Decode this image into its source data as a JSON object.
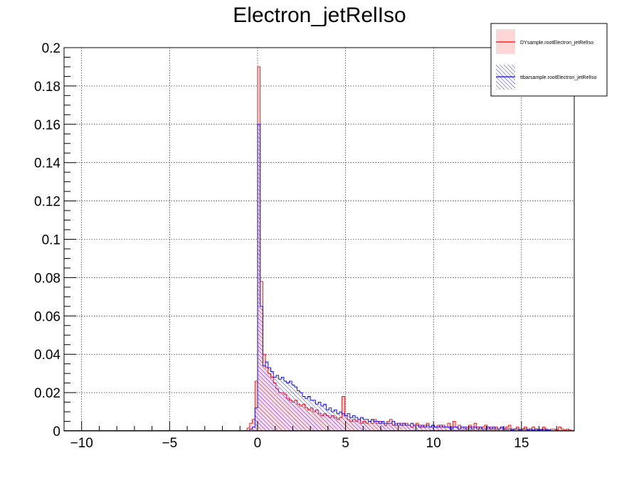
{
  "chart_data": {
    "type": "histogram",
    "title": "Electron_jetRelIso",
    "xlabel": "",
    "ylabel": "",
    "xlim": [
      -11,
      18
    ],
    "ylim": [
      0,
      0.2
    ],
    "x_ticks": [
      -10,
      -5,
      0,
      5,
      10,
      15
    ],
    "x_tick_labels": [
      "−10",
      "−5",
      "0",
      "5",
      "10",
      "15"
    ],
    "y_ticks": [
      0,
      0.02,
      0.04,
      0.06,
      0.08,
      0.1,
      0.12,
      0.14,
      0.16,
      0.18,
      0.2
    ],
    "y_tick_labels": [
      "0",
      "0.02",
      "0.04",
      "0.06",
      "0.08",
      "0.1",
      "0.12",
      "0.14",
      "0.16",
      "0.18",
      "0.2"
    ],
    "grid": true,
    "legend_position": "top-right",
    "bin_width": 0.15,
    "series": [
      {
        "name": "DYsample.rootElectron_jetRelIso",
        "color": "#ff0000",
        "fill": "#ffd6d6",
        "style": "solid-fill",
        "bins": [
          [
            -0.6,
            0.0015
          ],
          [
            -0.45,
            0.004
          ],
          [
            -0.3,
            0.006
          ],
          [
            -0.15,
            0.026
          ],
          [
            0.0,
            0.19
          ],
          [
            0.15,
            0.078
          ],
          [
            0.3,
            0.04
          ],
          [
            0.45,
            0.033
          ],
          [
            0.6,
            0.03
          ],
          [
            0.75,
            0.028
          ],
          [
            0.9,
            0.025
          ],
          [
            1.05,
            0.022
          ],
          [
            1.2,
            0.02
          ],
          [
            1.35,
            0.02
          ],
          [
            1.5,
            0.019
          ],
          [
            1.65,
            0.017
          ],
          [
            1.8,
            0.016
          ],
          [
            1.95,
            0.015
          ],
          [
            2.1,
            0.016
          ],
          [
            2.25,
            0.014
          ],
          [
            2.4,
            0.013
          ],
          [
            2.55,
            0.014
          ],
          [
            2.7,
            0.012
          ],
          [
            2.85,
            0.011
          ],
          [
            3.0,
            0.012
          ],
          [
            3.15,
            0.01
          ],
          [
            3.3,
            0.011
          ],
          [
            3.45,
            0.009
          ],
          [
            3.6,
            0.008
          ],
          [
            3.75,
            0.009
          ],
          [
            3.9,
            0.008
          ],
          [
            4.05,
            0.007
          ],
          [
            4.2,
            0.008
          ],
          [
            4.35,
            0.007
          ],
          [
            4.5,
            0.006
          ],
          [
            4.65,
            0.007
          ],
          [
            4.8,
            0.018
          ],
          [
            4.95,
            0.008
          ],
          [
            5.1,
            0.006
          ],
          [
            5.25,
            0.005
          ],
          [
            5.4,
            0.006
          ],
          [
            5.55,
            0.005
          ],
          [
            5.7,
            0.006
          ],
          [
            5.85,
            0.004
          ],
          [
            6.0,
            0.005
          ],
          [
            6.15,
            0.004
          ],
          [
            6.3,
            0.005
          ],
          [
            6.45,
            0.004
          ],
          [
            6.6,
            0.006
          ],
          [
            6.75,
            0.004
          ],
          [
            6.9,
            0.005
          ],
          [
            7.05,
            0.004
          ],
          [
            7.2,
            0.003
          ],
          [
            7.35,
            0.005
          ],
          [
            7.5,
            0.006
          ],
          [
            7.65,
            0.003
          ],
          [
            7.8,
            0.004
          ],
          [
            7.95,
            0.003
          ],
          [
            8.1,
            0.004
          ],
          [
            8.25,
            0.003
          ],
          [
            8.4,
            0.004
          ],
          [
            8.55,
            0.003
          ],
          [
            8.7,
            0.002
          ],
          [
            8.85,
            0.003
          ],
          [
            9.0,
            0.004
          ],
          [
            9.15,
            0.003
          ],
          [
            9.3,
            0.002
          ],
          [
            9.45,
            0.003
          ],
          [
            9.6,
            0.004
          ],
          [
            9.75,
            0.002
          ],
          [
            9.9,
            0.003
          ],
          [
            10.05,
            0.002
          ],
          [
            10.2,
            0.003
          ],
          [
            10.35,
            0.002
          ],
          [
            10.5,
            0.003
          ],
          [
            10.65,
            0.002
          ],
          [
            10.8,
            0.004
          ],
          [
            10.95,
            0.002
          ],
          [
            11.1,
            0.005
          ],
          [
            11.25,
            0.002
          ],
          [
            11.4,
            0.003
          ],
          [
            11.55,
            0.002
          ],
          [
            11.7,
            0.001
          ],
          [
            11.85,
            0.002
          ],
          [
            12.0,
            0.003
          ],
          [
            12.15,
            0.002
          ],
          [
            12.3,
            0.004
          ],
          [
            12.45,
            0.002
          ],
          [
            12.6,
            0.001
          ],
          [
            12.75,
            0.002
          ],
          [
            12.9,
            0.003
          ],
          [
            13.05,
            0.001
          ],
          [
            13.2,
            0.002
          ],
          [
            13.35,
            0.001
          ],
          [
            13.5,
            0.002
          ],
          [
            13.65,
            0.001
          ],
          [
            13.8,
            0.002
          ],
          [
            13.95,
            0.001
          ],
          [
            14.1,
            0.002
          ],
          [
            14.25,
            0.003
          ],
          [
            14.4,
            0.001
          ],
          [
            14.55,
            0.001
          ],
          [
            14.7,
            0.002
          ],
          [
            14.85,
            0.001
          ],
          [
            15.0,
            0.001
          ],
          [
            15.15,
            0.002
          ],
          [
            15.3,
            0.001
          ],
          [
            15.45,
            0.001
          ],
          [
            15.6,
            0.002
          ],
          [
            15.75,
            0.001
          ],
          [
            15.9,
            0.001
          ],
          [
            16.05,
            0.001
          ],
          [
            16.2,
            0.002
          ],
          [
            16.35,
            0.001
          ],
          [
            16.5,
            0.0005
          ],
          [
            16.65,
            0.001
          ],
          [
            16.8,
            0.001
          ],
          [
            16.95,
            0.0005
          ],
          [
            17.1,
            0.002
          ],
          [
            17.25,
            0.001
          ],
          [
            17.4,
            0.0005
          ],
          [
            17.55,
            0.001
          ],
          [
            17.7,
            0.0005
          ]
        ]
      },
      {
        "name": "ttbarsample.rootElectron_jetRelIso",
        "color": "#0000ff",
        "fill": "#0000ff",
        "style": "hatched",
        "bins": [
          [
            -0.45,
            0.001
          ],
          [
            -0.3,
            0.002
          ],
          [
            -0.15,
            0.012
          ],
          [
            0.0,
            0.16
          ],
          [
            0.15,
            0.065
          ],
          [
            0.3,
            0.034
          ],
          [
            0.45,
            0.036
          ],
          [
            0.6,
            0.033
          ],
          [
            0.75,
            0.031
          ],
          [
            0.9,
            0.028
          ],
          [
            1.05,
            0.029
          ],
          [
            1.2,
            0.027
          ],
          [
            1.35,
            0.028
          ],
          [
            1.5,
            0.026
          ],
          [
            1.65,
            0.025
          ],
          [
            1.8,
            0.026
          ],
          [
            1.95,
            0.024
          ],
          [
            2.1,
            0.023
          ],
          [
            2.25,
            0.021
          ],
          [
            2.4,
            0.02
          ],
          [
            2.55,
            0.018
          ],
          [
            2.7,
            0.017
          ],
          [
            2.85,
            0.018
          ],
          [
            3.0,
            0.016
          ],
          [
            3.15,
            0.016
          ],
          [
            3.3,
            0.014
          ],
          [
            3.45,
            0.015
          ],
          [
            3.6,
            0.013
          ],
          [
            3.75,
            0.014
          ],
          [
            3.9,
            0.011
          ],
          [
            4.05,
            0.012
          ],
          [
            4.2,
            0.01
          ],
          [
            4.35,
            0.011
          ],
          [
            4.5,
            0.009
          ],
          [
            4.65,
            0.01
          ],
          [
            4.8,
            0.009
          ],
          [
            4.95,
            0.008
          ],
          [
            5.1,
            0.009
          ],
          [
            5.25,
            0.007
          ],
          [
            5.4,
            0.008
          ],
          [
            5.55,
            0.007
          ],
          [
            5.7,
            0.006
          ],
          [
            5.85,
            0.007
          ],
          [
            6.0,
            0.006
          ],
          [
            6.15,
            0.006
          ],
          [
            6.3,
            0.005
          ],
          [
            6.45,
            0.006
          ],
          [
            6.6,
            0.005
          ],
          [
            6.75,
            0.005
          ],
          [
            6.9,
            0.004
          ],
          [
            7.05,
            0.005
          ],
          [
            7.2,
            0.004
          ],
          [
            7.35,
            0.004
          ],
          [
            7.5,
            0.004
          ],
          [
            7.65,
            0.005
          ],
          [
            7.8,
            0.003
          ],
          [
            7.95,
            0.004
          ],
          [
            8.1,
            0.003
          ],
          [
            8.25,
            0.004
          ],
          [
            8.4,
            0.003
          ],
          [
            8.55,
            0.003
          ],
          [
            8.7,
            0.004
          ],
          [
            8.85,
            0.003
          ],
          [
            9.0,
            0.003
          ],
          [
            9.15,
            0.002
          ],
          [
            9.3,
            0.003
          ],
          [
            9.45,
            0.002
          ],
          [
            9.6,
            0.003
          ],
          [
            9.75,
            0.002
          ],
          [
            9.9,
            0.003
          ],
          [
            10.05,
            0.002
          ],
          [
            10.2,
            0.002
          ],
          [
            10.35,
            0.003
          ],
          [
            10.5,
            0.002
          ],
          [
            10.65,
            0.002
          ],
          [
            10.8,
            0.002
          ],
          [
            10.95,
            0.001
          ],
          [
            11.1,
            0.002
          ],
          [
            11.25,
            0.002
          ],
          [
            11.4,
            0.001
          ],
          [
            11.55,
            0.002
          ],
          [
            11.7,
            0.002
          ],
          [
            11.85,
            0.001
          ],
          [
            12.0,
            0.002
          ],
          [
            12.15,
            0.001
          ],
          [
            12.3,
            0.002
          ],
          [
            12.45,
            0.001
          ],
          [
            12.6,
            0.002
          ],
          [
            12.75,
            0.001
          ],
          [
            12.9,
            0.001
          ],
          [
            13.05,
            0.002
          ],
          [
            13.2,
            0.001
          ],
          [
            13.35,
            0.002
          ],
          [
            13.5,
            0.001
          ],
          [
            13.65,
            0.001
          ],
          [
            13.8,
            0.002
          ],
          [
            13.95,
            0.001
          ],
          [
            14.1,
            0.001
          ],
          [
            14.25,
            0.001
          ],
          [
            14.4,
            0.0005
          ],
          [
            14.55,
            0.001
          ],
          [
            14.7,
            0.001
          ],
          [
            14.85,
            0.0005
          ],
          [
            15.0,
            0.001
          ],
          [
            15.15,
            0.001
          ],
          [
            15.3,
            0.0005
          ],
          [
            15.45,
            0.001
          ],
          [
            15.6,
            0.0005
          ],
          [
            15.75,
            0.001
          ],
          [
            15.9,
            0.0005
          ],
          [
            16.05,
            0.0005
          ],
          [
            16.2,
            0.001
          ],
          [
            16.35,
            0.0005
          ],
          [
            16.5,
            0.0005
          ]
        ]
      }
    ]
  }
}
